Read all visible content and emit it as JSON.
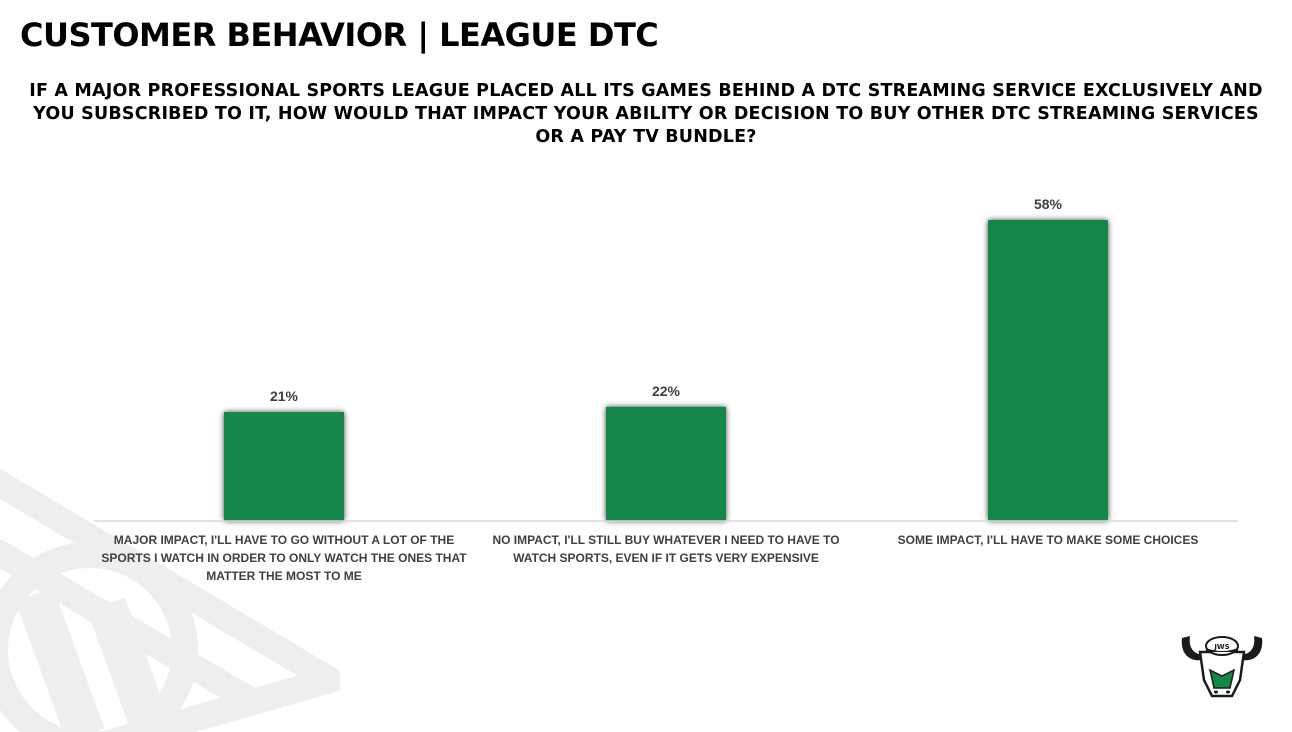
{
  "header": {
    "title": "CUSTOMER BEHAVIOR | LEAGUE DTC",
    "question": "IF A MAJOR PROFESSIONAL SPORTS LEAGUE PLACED ALL ITS GAMES BEHIND A DTC STREAMING SERVICE EXCLUSIVELY AND YOU SUBSCRIBED TO IT, HOW WOULD THAT IMPACT YOUR ABILITY OR DECISION TO BUY OTHER DTC STREAMING SERVICES OR A PAY TV BUNDLE?"
  },
  "logo": {
    "badge_text": "JWS"
  },
  "colors": {
    "bar": "#12874a",
    "axis": "#d9d9d9",
    "label": "#404040"
  },
  "chart_data": {
    "type": "bar",
    "title": "IF A MAJOR PROFESSIONAL SPORTS LEAGUE PLACED ALL ITS GAMES BEHIND A DTC STREAMING SERVICE EXCLUSIVELY AND YOU SUBSCRIBED TO IT, HOW WOULD THAT IMPACT YOUR ABILITY OR DECISION TO BUY OTHER DTC STREAMING SERVICES OR A PAY TV BUNDLE?",
    "categories": [
      "MAJOR IMPACT, I'LL HAVE TO GO WITHOUT A LOT OF THE SPORTS I WATCH IN ORDER TO ONLY WATCH THE ONES THAT MATTER THE MOST TO ME",
      "NO IMPACT, I'LL STILL BUY WHATEVER I NEED TO HAVE TO WATCH SPORTS, EVEN IF IT GETS VERY EXPENSIVE",
      "SOME IMPACT, I'LL HAVE TO MAKE SOME CHOICES"
    ],
    "values": [
      21,
      22,
      58
    ],
    "data_labels": [
      "21%",
      "22%",
      "58%"
    ],
    "unit": "%",
    "xlabel": "",
    "ylabel": "",
    "ylim": [
      0,
      58
    ],
    "grid": false,
    "legend": "none"
  }
}
